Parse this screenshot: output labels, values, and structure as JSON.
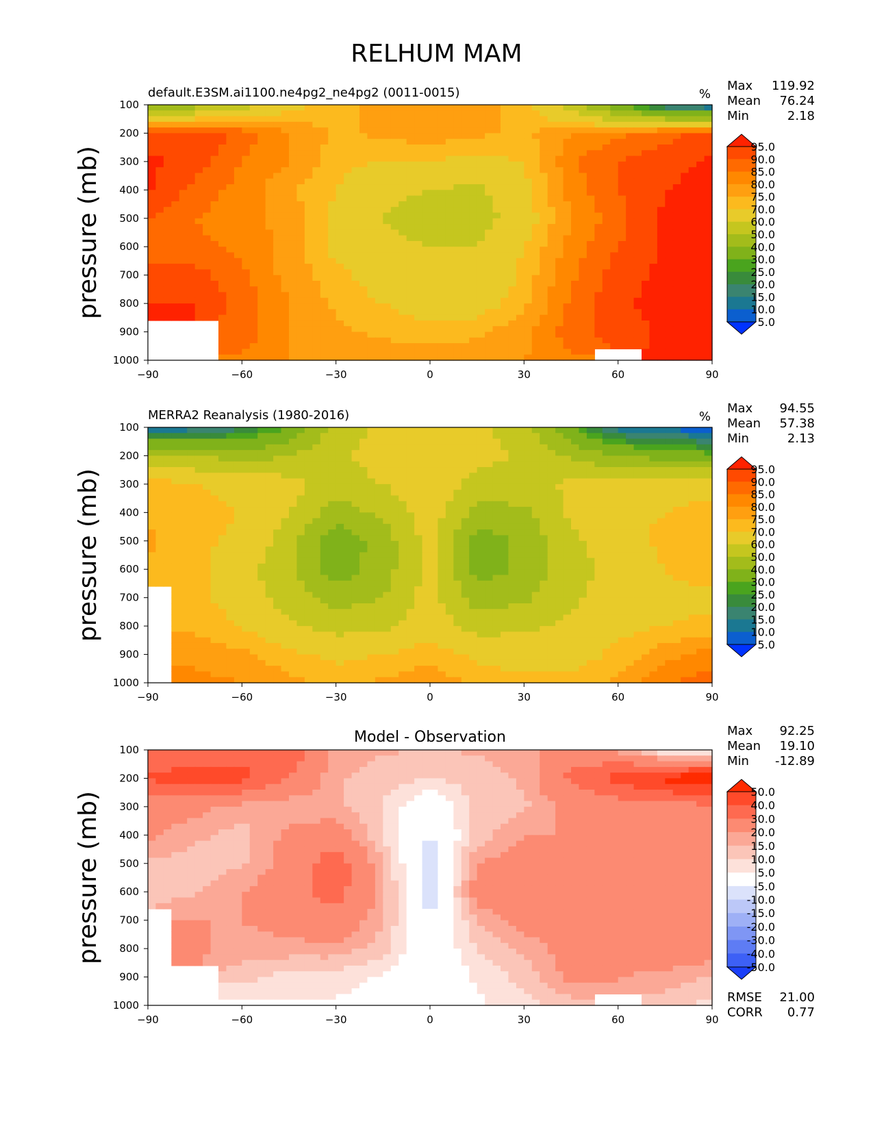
{
  "figure": {
    "title": "RELHUM MAM"
  },
  "chart_data": [
    {
      "type": "heatmap",
      "title": "default.E3SM.ai1100.ne4pg2_ne4pg2 (0011-0015)",
      "units": "%",
      "ylabel": "pressure (mb)",
      "xlabel": "",
      "xlim": [
        -90,
        90
      ],
      "ylim": [
        1000,
        100
      ],
      "xticks": [
        "−90",
        "−60",
        "−30",
        "0",
        "30",
        "60",
        "90"
      ],
      "yticks": [
        "100",
        "200",
        "300",
        "400",
        "500",
        "600",
        "700",
        "800",
        "900",
        "1000"
      ],
      "stats": {
        "max_label": "Max",
        "max": "119.92",
        "mean_label": "Mean",
        "mean": "76.24",
        "min_label": "Min",
        "min": "2.18"
      },
      "colorbar": {
        "levels": [
          "95.0",
          "90.0",
          "85.0",
          "80.0",
          "75.0",
          "70.0",
          "60.0",
          "50.0",
          "40.0",
          "30.0",
          "25.0",
          "20.0",
          "15.0",
          "10.0",
          "5.0"
        ],
        "colors": [
          "#ff2200",
          "#ff4a00",
          "#ff6a00",
          "#ff8800",
          "#ff9f10",
          "#fcba1e",
          "#e8cb2a",
          "#c5c61f",
          "#a3bc1b",
          "#80b21a",
          "#4aa41e",
          "#398b3b",
          "#3a8470",
          "#1b7892",
          "#0b5fcf",
          "#0033ff"
        ]
      },
      "x_values": [
        -90,
        -75,
        -60,
        -45,
        -30,
        -15,
        0,
        15,
        30,
        45,
        60,
        75,
        90
      ],
      "p_values": [
        100,
        200,
        300,
        400,
        500,
        600,
        700,
        800,
        900,
        1000
      ],
      "values": [
        [
          40,
          45,
          55,
          68,
          72,
          78,
          80,
          78,
          72,
          55,
          30,
          12,
          5
        ],
        [
          93,
          95,
          88,
          80,
          74,
          76,
          78,
          76,
          74,
          80,
          84,
          88,
          92
        ],
        [
          96,
          93,
          85,
          80,
          72,
          70,
          70,
          68,
          70,
          84,
          90,
          93,
          96
        ],
        [
          96,
          88,
          83,
          76,
          70,
          62,
          60,
          58,
          68,
          82,
          90,
          95,
          97
        ],
        [
          90,
          85,
          82,
          78,
          68,
          60,
          55,
          55,
          66,
          80,
          88,
          96,
          97
        ],
        [
          88,
          86,
          84,
          78,
          68,
          62,
          60,
          60,
          70,
          82,
          90,
          96,
          97
        ],
        [
          92,
          92,
          86,
          78,
          72,
          66,
          62,
          60,
          72,
          84,
          93,
          96,
          97
        ],
        [
          95,
          95,
          88,
          80,
          74,
          70,
          66,
          66,
          74,
          86,
          94,
          97,
          97
        ],
        [
          null,
          null,
          88,
          80,
          76,
          74,
          72,
          74,
          78,
          88,
          92,
          96,
          96
        ],
        [
          null,
          null,
          84,
          80,
          78,
          78,
          78,
          78,
          80,
          84,
          null,
          96,
          96
        ]
      ]
    },
    {
      "type": "heatmap",
      "title": "MERRA2 Reanalysis (1980-2016)",
      "units": "%",
      "ylabel": "pressure (mb)",
      "xlabel": "",
      "xlim": [
        -90,
        90
      ],
      "ylim": [
        1000,
        100
      ],
      "xticks": [
        "−90",
        "−60",
        "−30",
        "0",
        "30",
        "60",
        "90"
      ],
      "yticks": [
        "100",
        "200",
        "300",
        "400",
        "500",
        "600",
        "700",
        "800",
        "900",
        "1000"
      ],
      "stats": {
        "max_label": "Max",
        "max": "94.55",
        "mean_label": "Mean",
        "mean": "57.38",
        "min_label": "Min",
        "min": "2.13"
      },
      "colorbar": {
        "levels": [
          "95.0",
          "90.0",
          "85.0",
          "80.0",
          "75.0",
          "70.0",
          "60.0",
          "50.0",
          "40.0",
          "30.0",
          "25.0",
          "20.0",
          "15.0",
          "10.0",
          "5.0"
        ],
        "colors": [
          "#ff2200",
          "#ff4a00",
          "#ff6a00",
          "#ff8800",
          "#ff9f10",
          "#fcba1e",
          "#e8cb2a",
          "#c5c61f",
          "#a3bc1b",
          "#80b21a",
          "#4aa41e",
          "#398b3b",
          "#3a8470",
          "#1b7892",
          "#0b5fcf",
          "#0033ff"
        ]
      },
      "x_values": [
        -90,
        -75,
        -60,
        -45,
        -30,
        -15,
        0,
        15,
        30,
        45,
        60,
        75,
        90
      ],
      "p_values": [
        100,
        200,
        300,
        400,
        500,
        600,
        700,
        800,
        900,
        1000
      ],
      "values": [
        [
          8,
          12,
          18,
          30,
          55,
          62,
          66,
          62,
          55,
          30,
          12,
          8,
          6
        ],
        [
          52,
          50,
          45,
          50,
          58,
          64,
          68,
          64,
          58,
          48,
          40,
          35,
          32
        ],
        [
          74,
          70,
          68,
          64,
          56,
          60,
          68,
          56,
          56,
          62,
          66,
          68,
          68
        ],
        [
          74,
          72,
          70,
          60,
          45,
          52,
          66,
          46,
          48,
          62,
          68,
          70,
          72
        ],
        [
          76,
          72,
          68,
          55,
          32,
          45,
          64,
          35,
          42,
          58,
          66,
          72,
          74
        ],
        [
          74,
          72,
          64,
          52,
          34,
          45,
          64,
          35,
          42,
          56,
          64,
          70,
          74
        ],
        [
          null,
          72,
          66,
          55,
          45,
          50,
          64,
          45,
          48,
          58,
          66,
          68,
          68
        ],
        [
          null,
          74,
          70,
          62,
          56,
          58,
          66,
          56,
          58,
          62,
          68,
          70,
          72
        ],
        [
          null,
          78,
          76,
          72,
          68,
          70,
          74,
          68,
          66,
          66,
          72,
          78,
          82
        ],
        [
          null,
          82,
          80,
          76,
          74,
          76,
          78,
          74,
          72,
          72,
          76,
          84,
          88
        ]
      ]
    },
    {
      "type": "heatmap",
      "title": "Model - Observation",
      "units": "",
      "ylabel": "pressure (mb)",
      "xlabel": "",
      "xlim": [
        -90,
        90
      ],
      "ylim": [
        1000,
        100
      ],
      "xticks": [
        "−90",
        "−60",
        "−30",
        "0",
        "30",
        "60",
        "90"
      ],
      "yticks": [
        "100",
        "200",
        "300",
        "400",
        "500",
        "600",
        "700",
        "800",
        "900",
        "1000"
      ],
      "stats": {
        "max_label": "Max",
        "max": "92.25",
        "mean_label": "Mean",
        "mean": "19.10",
        "min_label": "Min",
        "min": "-12.89"
      },
      "metrics": {
        "rmse_label": "RMSE",
        "rmse": "21.00",
        "corr_label": "CORR",
        "corr": "0.77"
      },
      "colorbar": {
        "levels": [
          "50.0",
          "40.0",
          "30.0",
          "20.0",
          "15.0",
          "10.0",
          "5.0",
          "-5.0",
          "-10.0",
          "-15.0",
          "-20.0",
          "-30.0",
          "-40.0",
          "-50.0"
        ],
        "colors": [
          "#ff2b00",
          "#ff4a2a",
          "#fe6a50",
          "#fc8a72",
          "#fba896",
          "#fbc5b8",
          "#fde1da",
          "#ffffff",
          "#dbe2fb",
          "#bcc8f8",
          "#9eb0f6",
          "#7f96f4",
          "#5e7cf4",
          "#3d60f6",
          "#1b3ff8"
        ]
      },
      "x_values": [
        -90,
        -75,
        -60,
        -45,
        -30,
        -15,
        0,
        15,
        30,
        45,
        60,
        75,
        90
      ],
      "p_values": [
        100,
        200,
        300,
        400,
        500,
        600,
        700,
        800,
        900,
        1000
      ],
      "values": [
        [
          32,
          33,
          37,
          38,
          17,
          16,
          14,
          16,
          17,
          25,
          18,
          4,
          -1
        ],
        [
          41,
          45,
          43,
          30,
          16,
          12,
          10,
          12,
          16,
          32,
          44,
          53,
          60
        ],
        [
          22,
          23,
          17,
          16,
          16,
          10,
          -2,
          12,
          14,
          22,
          24,
          25,
          28
        ],
        [
          22,
          16,
          13,
          22,
          25,
          10,
          -6,
          12,
          20,
          20,
          22,
          25,
          25
        ],
        [
          14,
          13,
          14,
          23,
          36,
          15,
          -9,
          20,
          24,
          22,
          22,
          24,
          23
        ],
        [
          14,
          14,
          20,
          26,
          34,
          17,
          -9,
          25,
          28,
          26,
          26,
          26,
          23
        ],
        [
          null,
          20,
          20,
          23,
          27,
          16,
          -6,
          15,
          24,
          26,
          27,
          28,
          29
        ],
        [
          null,
          21,
          18,
          18,
          18,
          12,
          -2,
          10,
          16,
          24,
          26,
          27,
          25
        ],
        [
          null,
          null,
          12,
          8,
          8,
          4,
          -2,
          6,
          12,
          22,
          20,
          18,
          14
        ],
        [
          null,
          null,
          4,
          4,
          4,
          2,
          0,
          4,
          8,
          12,
          null,
          12,
          8
        ]
      ]
    }
  ]
}
